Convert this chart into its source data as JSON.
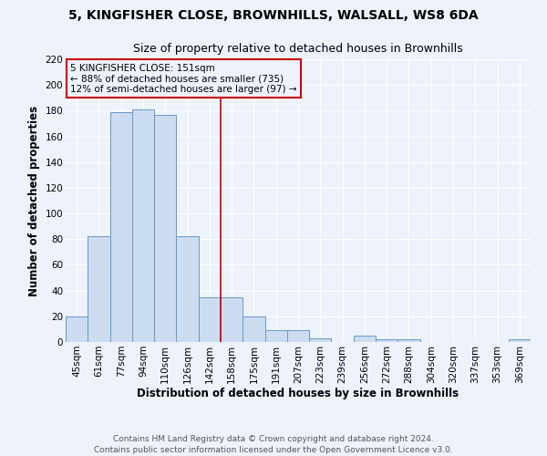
{
  "title_line1": "5, KINGFISHER CLOSE, BROWNHILLS, WALSALL, WS8 6DA",
  "title_line2": "Size of property relative to detached houses in Brownhills",
  "xlabel": "Distribution of detached houses by size in Brownhills",
  "ylabel": "Number of detached properties",
  "categories": [
    "45sqm",
    "61sqm",
    "77sqm",
    "94sqm",
    "110sqm",
    "126sqm",
    "142sqm",
    "158sqm",
    "175sqm",
    "191sqm",
    "207sqm",
    "223sqm",
    "239sqm",
    "256sqm",
    "272sqm",
    "288sqm",
    "304sqm",
    "320sqm",
    "337sqm",
    "353sqm",
    "369sqm"
  ],
  "values": [
    20,
    82,
    179,
    181,
    177,
    82,
    35,
    35,
    20,
    9,
    9,
    3,
    0,
    5,
    2,
    2,
    0,
    0,
    0,
    0,
    2
  ],
  "bar_color": "#cddcf0",
  "bar_edge_color": "#6699cc",
  "reference_line_color": "#cc0000",
  "annotation_line1": "5 KINGFISHER CLOSE: 151sqm",
  "annotation_line2": "← 88% of detached houses are smaller (735)",
  "annotation_line3": "12% of semi-detached houses are larger (97) →",
  "annotation_box_color": "#cc0000",
  "ylim": [
    0,
    220
  ],
  "yticks": [
    0,
    20,
    40,
    60,
    80,
    100,
    120,
    140,
    160,
    180,
    200,
    220
  ],
  "footer_line1": "Contains HM Land Registry data © Crown copyright and database right 2024.",
  "footer_line2": "Contains public sector information licensed under the Open Government Licence v3.0.",
  "bg_color": "#eef2fb",
  "grid_color": "#ffffff",
  "title_fontsize": 10,
  "subtitle_fontsize": 9,
  "axis_label_fontsize": 8.5,
  "tick_fontsize": 7.5,
  "annotation_fontsize": 7.5,
  "footer_fontsize": 6.5
}
